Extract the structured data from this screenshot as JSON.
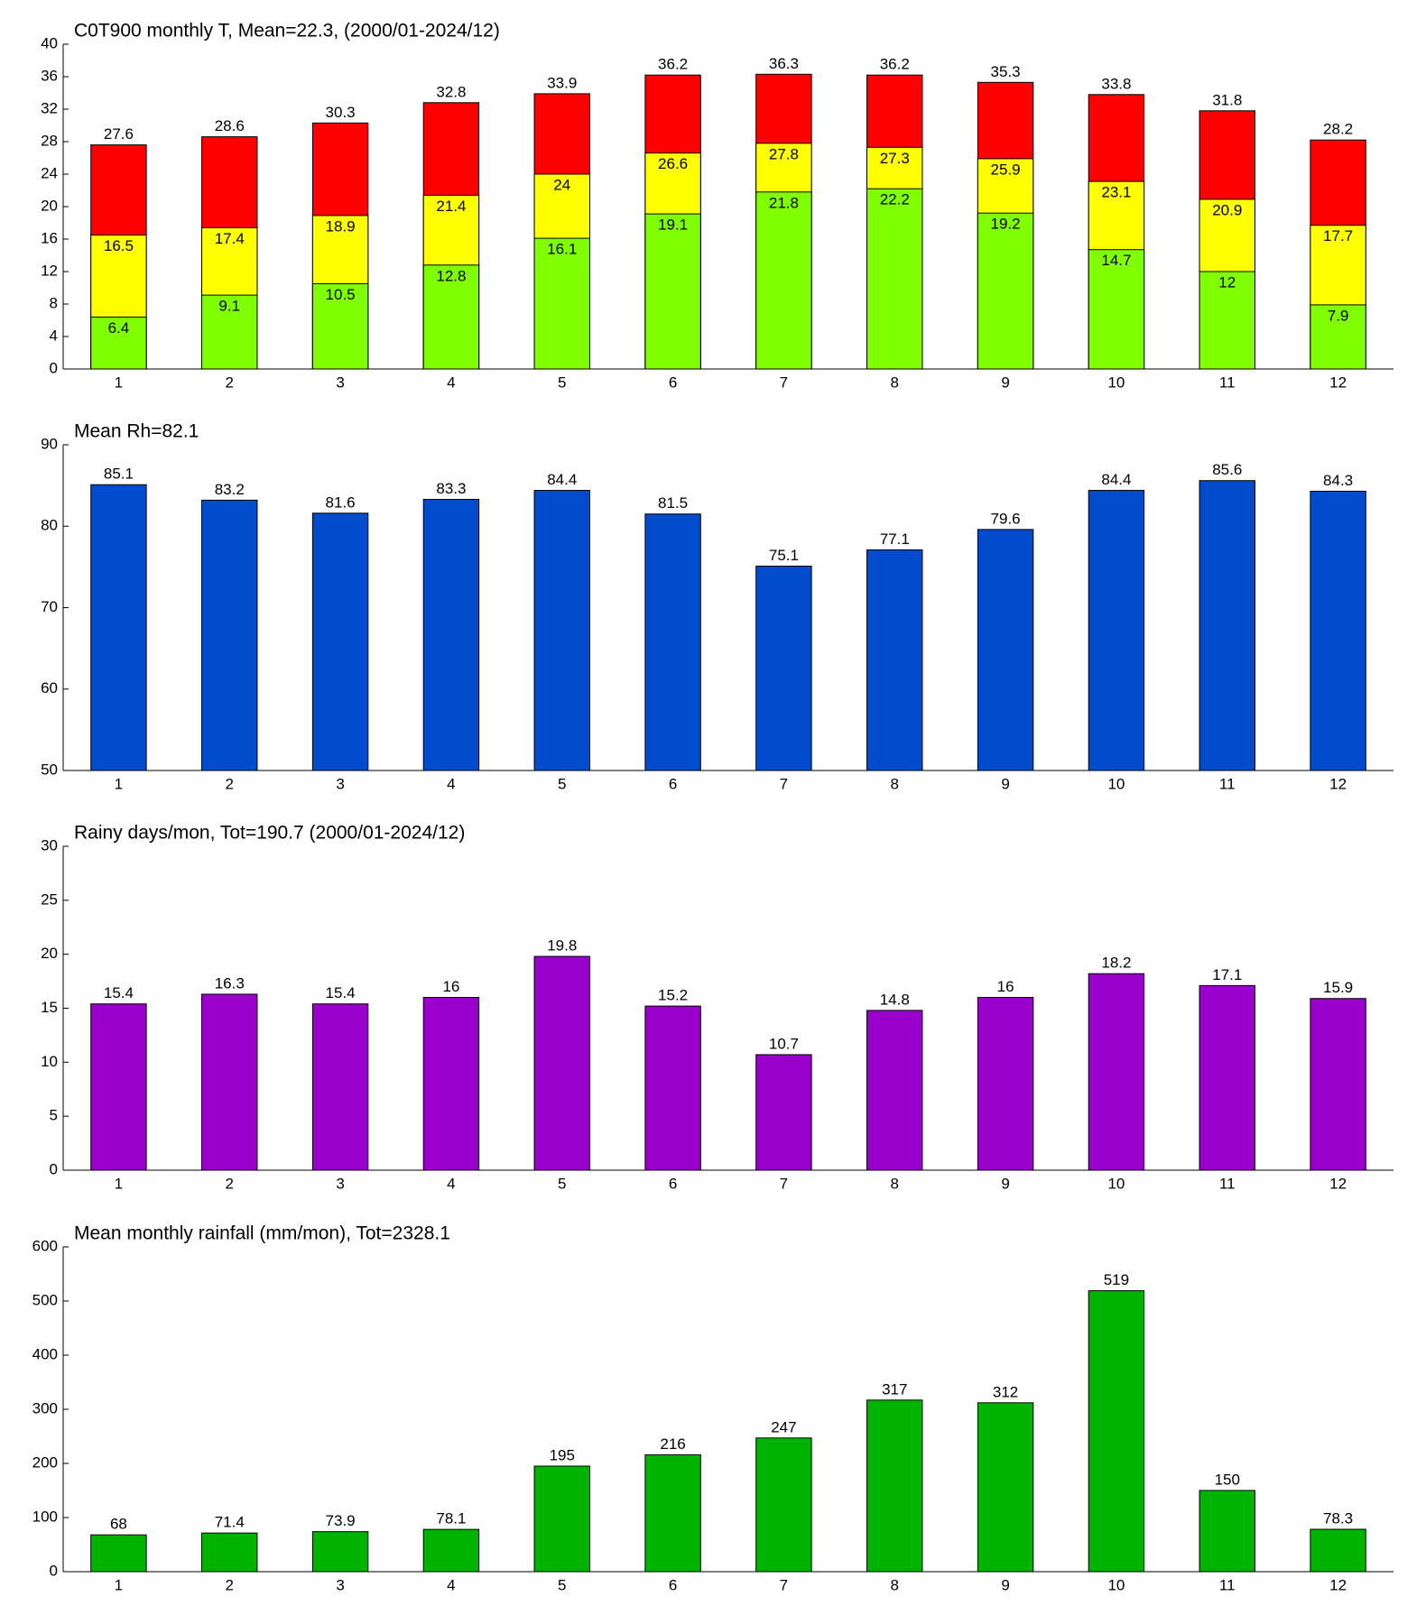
{
  "chart_data": [
    {
      "type": "bar",
      "title": "C0T900 monthly T, Mean=22.3, (2000/01-2024/12)",
      "categories": [
        "1",
        "2",
        "3",
        "4",
        "5",
        "6",
        "7",
        "8",
        "9",
        "10",
        "11",
        "12"
      ],
      "series": [
        {
          "color": "#ff0000",
          "values": [
            27.6,
            28.6,
            30.3,
            32.8,
            33.9,
            36.2,
            36.3,
            36.2,
            35.3,
            33.8,
            31.8,
            28.2
          ]
        },
        {
          "color": "#ffff00",
          "values": [
            16.5,
            17.4,
            18.9,
            21.4,
            24,
            26.6,
            27.8,
            27.3,
            25.9,
            23.1,
            20.9,
            17.7
          ]
        },
        {
          "color": "#80ff00",
          "values": [
            6.4,
            9.1,
            10.5,
            12.8,
            16.1,
            19.1,
            21.8,
            22.2,
            19.2,
            14.7,
            12,
            7.9
          ]
        }
      ],
      "ylim": [
        0,
        40
      ],
      "yticks": [
        0,
        4,
        8,
        12,
        16,
        20,
        24,
        28,
        32,
        36,
        40
      ]
    },
    {
      "type": "bar",
      "title": "Mean Rh=82.1",
      "categories": [
        "1",
        "2",
        "3",
        "4",
        "5",
        "6",
        "7",
        "8",
        "9",
        "10",
        "11",
        "12"
      ],
      "series": [
        {
          "color": "#004ccc",
          "values": [
            85.1,
            83.2,
            81.6,
            83.3,
            84.4,
            81.5,
            75.1,
            77.1,
            79.6,
            84.4,
            85.6,
            84.3
          ]
        }
      ],
      "ylim": [
        50,
        90
      ],
      "yticks": [
        50,
        60,
        70,
        80,
        90
      ]
    },
    {
      "type": "bar",
      "title": "Rainy days/mon, Tot=190.7 (2000/01-2024/12)",
      "categories": [
        "1",
        "2",
        "3",
        "4",
        "5",
        "6",
        "7",
        "8",
        "9",
        "10",
        "11",
        "12"
      ],
      "series": [
        {
          "color": "#9900cc",
          "values": [
            15.4,
            16.3,
            15.4,
            16,
            19.8,
            15.2,
            10.7,
            14.8,
            16,
            18.2,
            17.1,
            15.9
          ]
        }
      ],
      "ylim": [
        0,
        30
      ],
      "yticks": [
        0,
        5,
        10,
        15,
        20,
        25,
        30
      ]
    },
    {
      "type": "bar",
      "title": "Mean monthly rainfall (mm/mon), Tot=2328.1",
      "categories": [
        "1",
        "2",
        "3",
        "4",
        "5",
        "6",
        "7",
        "8",
        "9",
        "10",
        "11",
        "12"
      ],
      "series": [
        {
          "color": "#00b300",
          "values": [
            68,
            71.4,
            73.9,
            78.1,
            195,
            216,
            247,
            317,
            312,
            519,
            150,
            78.3
          ]
        }
      ],
      "ylim": [
        0,
        600
      ],
      "yticks": [
        0,
        100,
        200,
        300,
        400,
        500,
        600
      ]
    }
  ]
}
